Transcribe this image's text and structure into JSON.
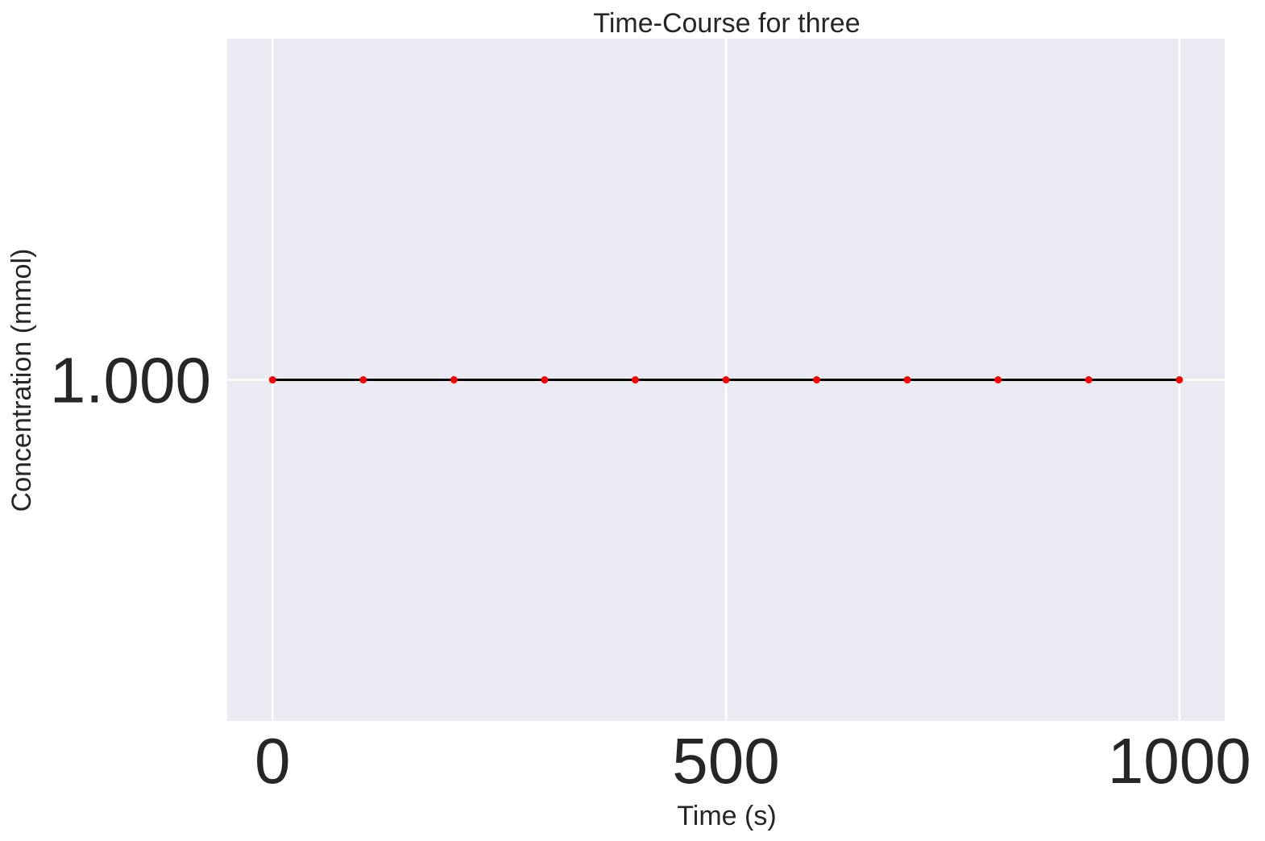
{
  "chart_data": {
    "type": "line",
    "title": "Time-Course for three",
    "xlabel": "Time (s)",
    "ylabel": "Concentration (mmol)",
    "xlim": [
      -50,
      1050
    ],
    "ylim": [
      0.0,
      2.0
    ],
    "x_ticks": [
      0,
      500,
      1000
    ],
    "x_tick_labels": [
      "0",
      "500",
      "1000"
    ],
    "y_ticks": [
      1.0
    ],
    "y_tick_labels": [
      "1.000"
    ],
    "grid": true,
    "background_color": "#eaeaf2",
    "grid_color": "#ffffff",
    "series": [
      {
        "x": [
          0,
          100,
          200,
          300,
          400,
          500,
          600,
          700,
          800,
          900,
          1000
        ],
        "y": [
          1.0,
          1.0,
          1.0,
          1.0,
          1.0,
          1.0,
          1.0,
          1.0,
          1.0,
          1.0,
          1.0
        ],
        "line_color": "#000000",
        "marker_color": "#ff0000"
      }
    ]
  }
}
